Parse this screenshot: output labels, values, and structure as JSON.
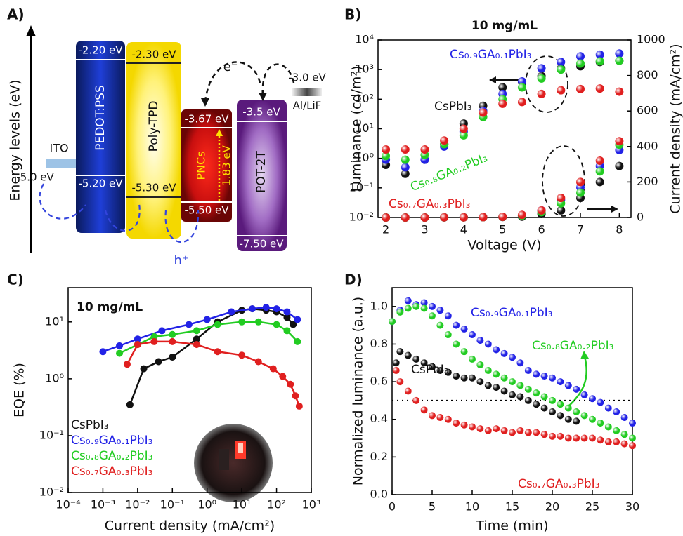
{
  "diagram": {
    "panel_label": "A)",
    "axis_label": "Energy levels (eV)",
    "electron": "e⁻",
    "hole": "h⁺",
    "layers": [
      {
        "name": "ITO",
        "level": "-5.0 eV"
      },
      {
        "name": "PEDOT:PSS",
        "lumo": "-2.20 eV",
        "homo": "-5.20 eV"
      },
      {
        "name": "Poly-TPD",
        "lumo": "-2.30 eV",
        "homo": "-5.30 eV"
      },
      {
        "name": "PNCs",
        "lumo": "-3.67 eV",
        "homo": "-5.50 eV",
        "gap": "1.83 eV"
      },
      {
        "name": "POT-2T",
        "lumo": "-3.5 eV",
        "homo": "-7.50 eV"
      },
      {
        "name": "Al/LiF",
        "level": "-3.0 eV"
      }
    ]
  },
  "chart_data": [
    {
      "type": "scatter",
      "panel_label": "B)",
      "title": "10 mg/mL",
      "xlabel": "Voltage (V)",
      "ylabel": "Luminance (cd/m²)",
      "y2label": "Current density (mA/cm²)",
      "ylog": true,
      "x": [
        2,
        2.5,
        3,
        3.5,
        4,
        4.5,
        5,
        5.5,
        6,
        6.5,
        7,
        7.5,
        8
      ],
      "xlim": [
        1.8,
        8.3
      ],
      "xticks": [
        2,
        3,
        4,
        5,
        6,
        7,
        8
      ],
      "ylim": [
        0.01,
        10000
      ],
      "yticks": [
        {
          "value": 0.01,
          "label": "10⁻²"
        },
        {
          "value": 0.1,
          "label": "10⁻¹"
        },
        {
          "value": 1,
          "label": "10⁰"
        },
        {
          "value": 10,
          "label": "10¹"
        },
        {
          "value": 100,
          "label": "10²"
        },
        {
          "value": 1000,
          "label": "10³"
        },
        {
          "value": 10000,
          "label": "10⁴"
        }
      ],
      "y2lim": [
        0,
        1000
      ],
      "y2ticks": [
        0,
        200,
        400,
        600,
        800,
        1000
      ],
      "series": [
        {
          "name": "CsPbI₃",
          "color": "#111111",
          "values": [
            0.6,
            0.3,
            0.9,
            3,
            15,
            60,
            250,
            380,
            600,
            1100,
            1300,
            1800,
            2000
          ]
        },
        {
          "name": "Cs₀.₉GA₀.₁PbI₃",
          "color": "#2222e6",
          "values": [
            0.9,
            0.5,
            0.9,
            2.5,
            8,
            40,
            150,
            400,
            1100,
            1800,
            2800,
            3200,
            3500
          ]
        },
        {
          "name": "Cs₀.₈GA₀.₂PbI₃",
          "color": "#22cc22",
          "values": [
            1.2,
            0.9,
            1.3,
            3,
            6,
            25,
            100,
            250,
            500,
            1000,
            1600,
            1900,
            2000
          ]
        },
        {
          "name": "Cs₀.₇GA₀.₃PbI₃",
          "color": "#e01f1f",
          "values": [
            2,
            2,
            2,
            4,
            10,
            35,
            70,
            80,
            150,
            200,
            220,
            230,
            180
          ]
        },
        {
          "color": "#111111",
          "axis": "y2",
          "values": [
            0,
            0,
            0,
            1,
            1,
            2,
            3,
            5,
            20,
            40,
            110,
            200,
            290
          ]
        },
        {
          "color": "#2222e6",
          "axis": "y2",
          "values": [
            0,
            0,
            0,
            1,
            1,
            2,
            4,
            10,
            40,
            100,
            170,
            290,
            380
          ]
        },
        {
          "color": "#22cc22",
          "axis": "y2",
          "values": [
            0,
            0,
            0,
            1,
            1,
            2,
            4,
            10,
            30,
            80,
            140,
            260,
            410
          ]
        },
        {
          "color": "#e01f1f",
          "axis": "y2",
          "values": [
            0,
            0,
            0,
            1,
            1,
            2,
            4,
            15,
            40,
            110,
            200,
            320,
            430
          ]
        }
      ]
    },
    {
      "type": "line",
      "panel_label": "C)",
      "annotation": "10 mg/mL",
      "xlabel": "Current density (mA/cm²)",
      "ylabel": "EQE (%)",
      "xlog": true,
      "ylog": true,
      "legend": "lower left",
      "xlim": [
        0.0001,
        1000
      ],
      "xticks": [
        {
          "value": 0.0001,
          "label": "10⁻⁴"
        },
        {
          "value": 0.001,
          "label": "10⁻³"
        },
        {
          "value": 0.01,
          "label": "10⁻²"
        },
        {
          "value": 0.1,
          "label": "10⁻¹"
        },
        {
          "value": 1,
          "label": "10⁰"
        },
        {
          "value": 10,
          "label": "10¹"
        },
        {
          "value": 100,
          "label": "10²"
        },
        {
          "value": 1000,
          "label": "10³"
        }
      ],
      "ylim": [
        0.01,
        40
      ],
      "yticks": [
        {
          "value": 0.01,
          "label": "10⁻²"
        },
        {
          "value": 0.1,
          "label": "10⁻¹"
        },
        {
          "value": 1,
          "label": "10⁰"
        },
        {
          "value": 10,
          "label": "10¹"
        }
      ],
      "series": [
        {
          "name": "CsPbI₃",
          "color": "#111111",
          "x": [
            0.006,
            0.015,
            0.04,
            0.1,
            0.5,
            2,
            10,
            20,
            50,
            100,
            200,
            300
          ],
          "values": [
            0.35,
            1.5,
            2,
            2.4,
            5,
            10,
            16,
            17,
            16,
            15,
            12,
            9
          ]
        },
        {
          "name": "Cs₀.₉GA₀.₁PbI₃",
          "color": "#2222e6",
          "x": [
            0.001,
            0.003,
            0.01,
            0.05,
            0.3,
            1,
            5,
            20,
            50,
            100,
            200,
            400
          ],
          "values": [
            3,
            3.8,
            5,
            7,
            9,
            11,
            15,
            17,
            18,
            17,
            15,
            11
          ]
        },
        {
          "name": "Cs₀.₈GA₀.₂PbI₃",
          "color": "#22cc22",
          "x": [
            0.003,
            0.01,
            0.03,
            0.1,
            0.5,
            2,
            10,
            30,
            100,
            200,
            400
          ],
          "values": [
            2.8,
            4,
            5.5,
            6,
            7,
            9,
            10,
            10,
            9,
            7,
            4.5
          ]
        },
        {
          "name": "Cs₀.₇GA₀.₃PbI₃",
          "color": "#e01f1f",
          "x": [
            0.005,
            0.01,
            0.03,
            0.1,
            0.5,
            2,
            10,
            30,
            80,
            150,
            250,
            350,
            450
          ],
          "values": [
            1.8,
            4,
            4.5,
            4.5,
            4,
            3,
            2.6,
            2,
            1.5,
            1.1,
            0.8,
            0.5,
            0.33
          ]
        }
      ]
    },
    {
      "type": "scatter",
      "panel_label": "D)",
      "xlabel": "Time (min)",
      "ylabel": "Normalized luminance (a.u.)",
      "xlim": [
        0,
        30
      ],
      "xticks": [
        0,
        5,
        10,
        15,
        20,
        25,
        30
      ],
      "ylim": [
        0,
        1.1
      ],
      "yticks": [
        {
          "value": 0,
          "label": "0.0"
        },
        0.2,
        0.4,
        0.6,
        0.8,
        {
          "value": 1,
          "label": "1.0"
        }
      ],
      "reference_line": 0.5,
      "series": [
        {
          "name": "Cs₀.₉GA₀.₁PbI₃",
          "color": "#2222e6",
          "x": [
            0,
            1,
            2,
            3,
            4,
            5,
            6,
            7,
            8,
            9,
            10,
            11,
            12,
            13,
            14,
            15,
            16,
            17,
            18,
            19,
            20,
            21,
            22,
            23,
            24,
            25,
            26,
            27,
            28,
            29,
            30
          ],
          "values": [
            0.92,
            0.98,
            1.03,
            1.01,
            1.02,
            1.0,
            0.98,
            0.95,
            0.9,
            0.88,
            0.85,
            0.82,
            0.8,
            0.77,
            0.75,
            0.73,
            0.7,
            0.66,
            0.64,
            0.63,
            0.62,
            0.6,
            0.58,
            0.56,
            0.53,
            0.51,
            0.49,
            0.46,
            0.44,
            0.41,
            0.38
          ]
        },
        {
          "name": "CsPbI₃",
          "color": "#111111",
          "x": [
            0.5,
            1,
            2,
            3,
            4,
            5,
            6,
            7,
            8,
            9,
            10,
            11,
            12,
            13,
            14,
            15,
            16,
            17,
            18,
            19,
            20,
            21,
            22,
            23
          ],
          "values": [
            0.7,
            0.76,
            0.74,
            0.72,
            0.7,
            0.68,
            0.66,
            0.65,
            0.63,
            0.62,
            0.62,
            0.6,
            0.58,
            0.57,
            0.55,
            0.53,
            0.52,
            0.5,
            0.48,
            0.46,
            0.44,
            0.42,
            0.4,
            0.39
          ]
        },
        {
          "name": "Cs₀.₈GA₀.₂PbI₃",
          "color": "#22cc22",
          "x": [
            0,
            1,
            2,
            3,
            4,
            5,
            6,
            7,
            8,
            9,
            10,
            11,
            12,
            13,
            14,
            15,
            16,
            17,
            18,
            19,
            20,
            21,
            22,
            23,
            24,
            25,
            26,
            27,
            28,
            29,
            30
          ],
          "values": [
            0.92,
            0.97,
            0.99,
            1.0,
            0.99,
            0.95,
            0.9,
            0.85,
            0.8,
            0.76,
            0.72,
            0.69,
            0.66,
            0.64,
            0.62,
            0.6,
            0.58,
            0.56,
            0.54,
            0.52,
            0.5,
            0.48,
            0.46,
            0.44,
            0.42,
            0.4,
            0.38,
            0.36,
            0.34,
            0.32,
            0.3
          ]
        },
        {
          "name": "Cs₀.₇GA₀.₃PbI₃",
          "color": "#e01f1f",
          "x": [
            0.5,
            1,
            2,
            3,
            4,
            5,
            6,
            7,
            8,
            9,
            10,
            11,
            12,
            13,
            14,
            15,
            16,
            17,
            18,
            19,
            20,
            21,
            22,
            23,
            24,
            25,
            26,
            27,
            28,
            29,
            30
          ],
          "values": [
            0.66,
            0.6,
            0.55,
            0.5,
            0.45,
            0.42,
            0.41,
            0.4,
            0.38,
            0.37,
            0.36,
            0.35,
            0.34,
            0.35,
            0.34,
            0.33,
            0.34,
            0.33,
            0.33,
            0.32,
            0.31,
            0.31,
            0.3,
            0.3,
            0.3,
            0.3,
            0.29,
            0.28,
            0.28,
            0.27,
            0.26
          ]
        }
      ]
    }
  ]
}
